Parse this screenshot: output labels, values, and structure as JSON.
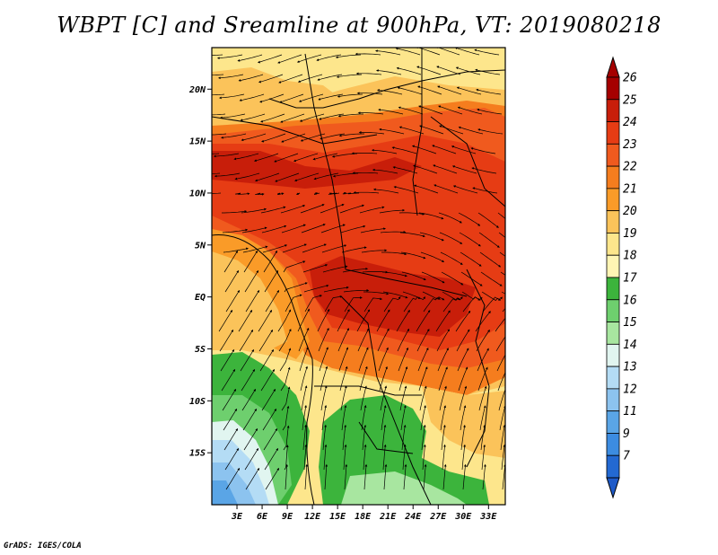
{
  "title": "WBPT [C] and Sreamline at 900hPa, VT: 2019080218",
  "footer": "GrADS: IGES/COLA",
  "map": {
    "variable": "WBPT [C]",
    "overlay": "Streamline",
    "level": "900hPa",
    "valid_time": "2019080218",
    "lon_range": [
      0,
      35
    ],
    "lat_range": [
      -20,
      24
    ],
    "lat_ticks": [
      {
        "value": 20,
        "label": "20N"
      },
      {
        "value": 15,
        "label": "15N"
      },
      {
        "value": 10,
        "label": "10N"
      },
      {
        "value": 5,
        "label": "5N"
      },
      {
        "value": 0,
        "label": "EQ"
      },
      {
        "value": -5,
        "label": "5S"
      },
      {
        "value": -10,
        "label": "10S"
      },
      {
        "value": -15,
        "label": "15S"
      }
    ],
    "lon_ticks": [
      {
        "value": 3,
        "label": "3E"
      },
      {
        "value": 6,
        "label": "6E"
      },
      {
        "value": 9,
        "label": "9E"
      },
      {
        "value": 12,
        "label": "12E"
      },
      {
        "value": 15,
        "label": "15E"
      },
      {
        "value": 18,
        "label": "18E"
      },
      {
        "value": 21,
        "label": "21E"
      },
      {
        "value": 24,
        "label": "24E"
      },
      {
        "value": 27,
        "label": "27E"
      },
      {
        "value": 30,
        "label": "30E"
      },
      {
        "value": 33,
        "label": "33E"
      }
    ]
  },
  "colorbar": {
    "levels": [
      {
        "label": "26",
        "color": "#a50000"
      },
      {
        "label": "25",
        "color": "#c81e0a"
      },
      {
        "label": "24",
        "color": "#e63c14"
      },
      {
        "label": "23",
        "color": "#f05a1e"
      },
      {
        "label": "22",
        "color": "#f57d1e"
      },
      {
        "label": "21",
        "color": "#fa9b28"
      },
      {
        "label": "20",
        "color": "#fbc35a"
      },
      {
        "label": "19",
        "color": "#fde68c"
      },
      {
        "label": "18",
        "color": "#fff5b4"
      },
      {
        "label": "17",
        "color": "#3cb43c"
      },
      {
        "label": "16",
        "color": "#6ecf6e"
      },
      {
        "label": "15",
        "color": "#a8e6a0"
      },
      {
        "label": "14",
        "color": "#e1f5f0"
      },
      {
        "label": "13",
        "color": "#b4dcf5"
      },
      {
        "label": "12",
        "color": "#8cc3ef"
      },
      {
        "label": "11",
        "color": "#5aa5e6"
      },
      {
        "label": "9",
        "color": "#3c8ce1"
      },
      {
        "label": "7",
        "color": "#2369d2"
      }
    ],
    "top_arrow_color": "#a50000",
    "bottom_arrow_color": "#1e5ac8"
  }
}
